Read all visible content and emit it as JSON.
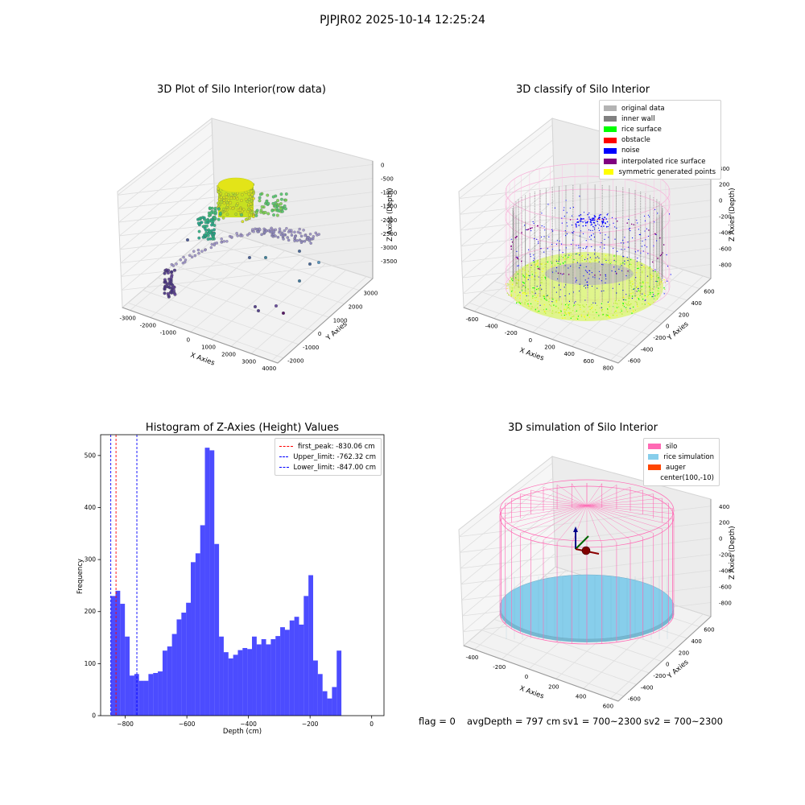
{
  "suptitle": "PJPJR02 2025-10-14 12:25:24",
  "panels": {
    "raw": {
      "title": "3D Plot of Silo Interior(row data)",
      "xlabel": "X Axies",
      "ylabel": "Y Axies",
      "zlabel": "Z Axies (Depth)",
      "xticks": [
        "-3000",
        "-2000",
        "-1000",
        "0",
        "1000",
        "2000",
        "3000",
        "4000"
      ],
      "yticks": [
        "-2000",
        "-1000",
        "0",
        "1000",
        "2000",
        "3000"
      ],
      "zticks": [
        "0",
        "-500",
        "-1000",
        "-1500",
        "-2000",
        "-2500",
        "-3000",
        "-3500"
      ]
    },
    "classify": {
      "title": "3D classify of Silo Interior",
      "xlabel": "X Axies",
      "ylabel": "Y Axies",
      "zlabel": "Z Axies (Depth)",
      "xticks": [
        "-600",
        "-400",
        "-200",
        "0",
        "200",
        "400",
        "600",
        "800"
      ],
      "yticks": [
        "-600",
        "-400",
        "-200",
        "0",
        "200",
        "400",
        "600"
      ],
      "zticks": [
        "400",
        "200",
        "0",
        "-200",
        "-400",
        "-600",
        "-800"
      ],
      "legend": [
        {
          "label": "original data",
          "color": "#b3b3b3"
        },
        {
          "label": "inner wall",
          "color": "#808080"
        },
        {
          "label": "rice surface",
          "color": "#00ff00"
        },
        {
          "label": "obstacle",
          "color": "#ff0000"
        },
        {
          "label": "noise",
          "color": "#0000ff"
        },
        {
          "label": "interpolated rice surface",
          "color": "#800080"
        },
        {
          "label": "symmetric generated points",
          "color": "#ffff00"
        }
      ]
    },
    "simulation": {
      "title": "3D simulation of Silo Interior",
      "xlabel": "X Axies",
      "ylabel": "Y Axies",
      "zlabel": "Z Axies (Depth)",
      "xticks": [
        "-400",
        "-200",
        "0",
        "200",
        "400",
        "600"
      ],
      "yticks": [
        "-600",
        "-400",
        "-200",
        "0",
        "200",
        "400",
        "600"
      ],
      "zticks": [
        "400",
        "200",
        "0",
        "-200",
        "-400",
        "-600",
        "-800"
      ],
      "legend": [
        {
          "label": "silo",
          "color": "#ff69b4"
        },
        {
          "label": "rice simulation",
          "color": "#87ceeb"
        },
        {
          "label": "auger",
          "color": "#ff4500"
        },
        {
          "label": "center(100,-10)",
          "color": ""
        }
      ]
    }
  },
  "footer": {
    "flag": "flag = 0",
    "avg": "avgDepth = 797 cm",
    "sv1": "sv1 = 700~2300",
    "sv2": "sv2 = 700~2300"
  },
  "chart_data": {
    "type": "bar",
    "title": "Histogram of Z-Axies (Height) Values",
    "xlabel": "Depth (cm)",
    "ylabel": "Frequency",
    "xlim": [
      -880,
      40
    ],
    "ylim": [
      0,
      540
    ],
    "xticks": [
      -800,
      -600,
      -400,
      -200,
      0
    ],
    "yticks": [
      0,
      100,
      200,
      300,
      400,
      500
    ],
    "bar_color": "#0000ff",
    "bin_width": 15.28,
    "bin_start": -847.0,
    "values": [
      230,
      240,
      215,
      152,
      77,
      80,
      67,
      67,
      80,
      82,
      85,
      125,
      133,
      157,
      185,
      198,
      217,
      295,
      312,
      366,
      515,
      510,
      330,
      152,
      122,
      110,
      117,
      126,
      130,
      128,
      152,
      137,
      147,
      137,
      147,
      153,
      170,
      165,
      183,
      190,
      175,
      230,
      270,
      106,
      80,
      47,
      33,
      55,
      125
    ],
    "vlines": [
      {
        "label": "first_peak: -830.06 cm",
        "x": -830.06,
        "color": "#ff0000"
      },
      {
        "label": "Upper_limit: -762.32 cm",
        "x": -762.32,
        "color": "#0000ff"
      },
      {
        "label": "Lower_limit: -847.00 cm",
        "x": -847.0,
        "color": "#0000ff"
      }
    ]
  }
}
